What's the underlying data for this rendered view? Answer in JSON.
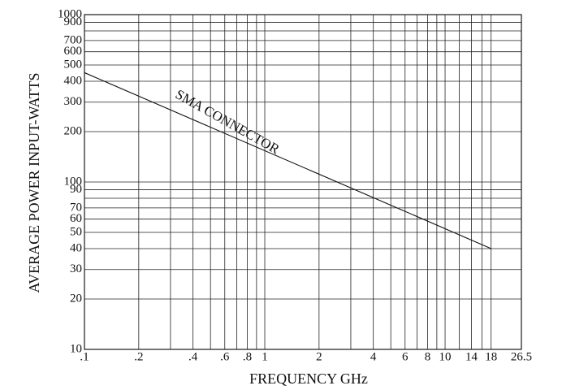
{
  "chart_data": {
    "type": "line",
    "xlabel": "FREQUENCY GHz",
    "ylabel": "AVERAGE POWER INPUT-WATTS",
    "xlog": true,
    "ylog": true,
    "grid": true,
    "xlim": [
      0.1,
      26.5
    ],
    "ylim": [
      10,
      1000
    ],
    "xticks": [
      {
        "value": 0.1,
        "label": ".1"
      },
      {
        "value": 0.2,
        "label": ".2"
      },
      {
        "value": 0.4,
        "label": ".4"
      },
      {
        "value": 0.6,
        "label": ".6"
      },
      {
        "value": 0.8,
        "label": ".8"
      },
      1,
      2,
      4,
      6,
      8,
      10,
      14,
      18,
      26.5
    ],
    "xminor": [
      0.3,
      0.5,
      0.7,
      0.9,
      3,
      5,
      7,
      9,
      12,
      16
    ],
    "yticks": [
      10,
      20,
      30,
      40,
      50,
      60,
      70,
      90,
      100,
      200,
      300,
      400,
      500,
      600,
      700,
      900,
      1000
    ],
    "yminor": [
      80,
      800
    ],
    "series": [
      {
        "name": "SMA CONNECTOR",
        "color": "#111111",
        "x": [
          0.1,
          18
        ],
        "values": [
          450,
          40
        ]
      }
    ]
  }
}
